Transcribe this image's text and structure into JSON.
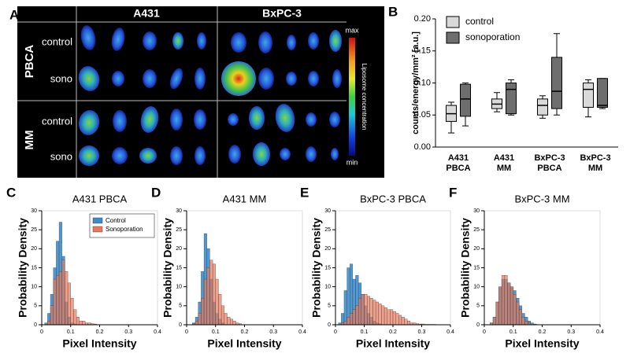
{
  "image_panel": {
    "panel_label": "A",
    "columns": [
      "A431",
      "BxPC-3"
    ],
    "groups": [
      {
        "name": "PBCA",
        "rows": [
          "control",
          "sono"
        ]
      },
      {
        "name": "MM",
        "rows": [
          "control",
          "sono"
        ]
      }
    ],
    "colorbar": {
      "max_label": "max",
      "min_label": "min",
      "title": "Liposome concentration"
    }
  },
  "chart_data": [
    {
      "type": "box",
      "panel_label": "B",
      "ylabel": "counts/energy/mm² [a.u.]",
      "categories": [
        [
          "A431",
          "PBCA"
        ],
        [
          "A431",
          "MM"
        ],
        [
          "BxPC-3",
          "PBCA"
        ],
        [
          "BxPC-3",
          "MM"
        ]
      ],
      "series": [
        {
          "name": "control",
          "color": "#d9d9d9",
          "values": [
            [
              0.022,
              0.04,
              0.052,
              0.065,
              0.07
            ],
            [
              0.055,
              0.06,
              0.067,
              0.075,
              0.085
            ],
            [
              0.045,
              0.05,
              0.065,
              0.075,
              0.08
            ],
            [
              0.047,
              0.062,
              0.09,
              0.1,
              0.105
            ]
          ]
        },
        {
          "name": "sonoporation",
          "color": "#6e6e6e",
          "values": [
            [
              0.033,
              0.048,
              0.075,
              0.098,
              0.1
            ],
            [
              0.05,
              0.052,
              0.09,
              0.1,
              0.105
            ],
            [
              0.05,
              0.06,
              0.087,
              0.14,
              0.177
            ],
            [
              0.06,
              0.062,
              0.065,
              0.107,
              0.107
            ]
          ]
        }
      ],
      "ylim": [
        0,
        0.2
      ],
      "yticks": [
        {
          "value": 0,
          "label": "0.00"
        },
        {
          "value": 0.05,
          "label": "0.05"
        },
        {
          "value": 0.1,
          "label": "0.10"
        },
        {
          "value": 0.15,
          "label": "0.15"
        },
        {
          "value": 0.2,
          "label": "0.20"
        }
      ],
      "legend": "top-left"
    },
    {
      "type": "histogram",
      "panel_label": "C",
      "title": "A431 PBCA",
      "xlabel": "Pixel Intensity",
      "ylabel": "Probability Density",
      "bins": [
        0,
        0.01,
        0.02,
        0.03,
        0.04,
        0.05,
        0.06,
        0.07,
        0.08,
        0.09,
        0.1,
        0.11,
        0.12,
        0.13,
        0.14,
        0.15,
        0.16,
        0.17,
        0.18,
        0.19,
        0.2,
        0.21,
        0.22,
        0.23,
        0.24,
        0.25,
        0.26,
        0.27,
        0.28,
        0.29,
        0.3,
        0.31,
        0.32,
        0.33,
        0.34,
        0.35,
        0.36,
        0.37,
        0.38,
        0.39,
        0.4
      ],
      "series": [
        {
          "name": "Control",
          "color": "#3c8dcc",
          "values": [
            0,
            0.5,
            3,
            8,
            15,
            22,
            27,
            18,
            6,
            2,
            0.5,
            0.2,
            0,
            0,
            0,
            0,
            0,
            0,
            0,
            0,
            0,
            0,
            0,
            0,
            0,
            0,
            0,
            0,
            0,
            0,
            0,
            0,
            0,
            0,
            0,
            0,
            0,
            0,
            0,
            0
          ]
        },
        {
          "name": "Sonoporation",
          "color": "#e8795a",
          "values": [
            0,
            0,
            1,
            5,
            12,
            13,
            14,
            17,
            14,
            11,
            7,
            4,
            2,
            1,
            1,
            0.5,
            0.5,
            0.3,
            0.2,
            0,
            0,
            0,
            0,
            0,
            0,
            0,
            0,
            0,
            0,
            0,
            0,
            0,
            0,
            0,
            0,
            0,
            0,
            0,
            0,
            0
          ]
        }
      ],
      "xlim": [
        0,
        0.4
      ],
      "xticks": [
        0,
        0.1,
        0.2,
        0.3,
        0.4
      ],
      "ylim": [
        0,
        30
      ],
      "yticks": [
        0,
        5,
        10,
        15,
        20,
        25,
        30
      ],
      "legend": "top-right"
    },
    {
      "type": "histogram",
      "panel_label": "D",
      "title": "A431 MM",
      "xlabel": "Pixel Intensity",
      "ylabel": "Probability Density",
      "bins": [
        0,
        0.01,
        0.02,
        0.03,
        0.04,
        0.05,
        0.06,
        0.07,
        0.08,
        0.09,
        0.1,
        0.11,
        0.12,
        0.13,
        0.14,
        0.15,
        0.16,
        0.17,
        0.18,
        0.19,
        0.2,
        0.21,
        0.22,
        0.23,
        0.24,
        0.25,
        0.26,
        0.27,
        0.28,
        0.29,
        0.3,
        0.31,
        0.32,
        0.33,
        0.34,
        0.35,
        0.36,
        0.37,
        0.38,
        0.39,
        0.4
      ],
      "series": [
        {
          "color": "#3c8dcc",
          "values": [
            0,
            0,
            0.5,
            2,
            6,
            14,
            24,
            20,
            12,
            6,
            3,
            1.5,
            0.5,
            0,
            0,
            0,
            0,
            0,
            0,
            0,
            0,
            0,
            0,
            0,
            0,
            0,
            0,
            0,
            0,
            0,
            0,
            0,
            0,
            0,
            0,
            0,
            0,
            0,
            0,
            0
          ]
        },
        {
          "color": "#e8795a",
          "values": [
            0,
            0,
            0.3,
            1,
            3,
            7,
            12,
            15,
            17,
            16,
            12,
            8,
            5,
            3,
            2,
            1.5,
            1,
            0.5,
            0.3,
            0,
            0,
            0,
            0,
            0,
            0,
            0,
            0,
            0,
            0,
            0,
            0,
            0,
            0,
            0,
            0,
            0,
            0,
            0,
            0,
            0
          ]
        }
      ],
      "xlim": [
        0,
        0.4
      ],
      "xticks": [
        0,
        0.1,
        0.2,
        0.3,
        0.4
      ],
      "ylim": [
        0,
        30
      ],
      "yticks": [
        0,
        5,
        10,
        15,
        20,
        25,
        30
      ]
    },
    {
      "type": "histogram",
      "panel_label": "E",
      "title": "BxPC-3 PBCA",
      "xlabel": "Pixel Intensity",
      "ylabel": "Probability Density",
      "bins": [
        0,
        0.01,
        0.02,
        0.03,
        0.04,
        0.05,
        0.06,
        0.07,
        0.08,
        0.09,
        0.1,
        0.11,
        0.12,
        0.13,
        0.14,
        0.15,
        0.16,
        0.17,
        0.18,
        0.19,
        0.2,
        0.21,
        0.22,
        0.23,
        0.24,
        0.25,
        0.26,
        0.27,
        0.28,
        0.29,
        0.3,
        0.31,
        0.32,
        0.33,
        0.34,
        0.35,
        0.36,
        0.37,
        0.38,
        0.39,
        0.4
      ],
      "series": [
        {
          "color": "#3c8dcc",
          "values": [
            0,
            0.5,
            3,
            9,
            15,
            16,
            12,
            13,
            11,
            8,
            5,
            3,
            2,
            1,
            0.5,
            0.3,
            0,
            0,
            0,
            0,
            0,
            0,
            0,
            0,
            0,
            0,
            0,
            0,
            0,
            0,
            0,
            0,
            0,
            0,
            0,
            0,
            0,
            0,
            0,
            0
          ]
        },
        {
          "color": "#e8795a",
          "values": [
            0,
            0,
            0.5,
            1,
            2,
            3,
            4,
            5,
            7,
            8,
            8,
            7.5,
            7,
            6.5,
            6,
            5.5,
            5,
            4.5,
            4,
            4,
            3.5,
            3,
            2.5,
            2,
            1.5,
            1,
            0.5,
            0.5,
            0.3,
            0.2,
            0.2,
            0.1,
            0.1,
            0.1,
            0.1,
            0,
            0,
            0,
            0,
            0
          ]
        }
      ],
      "xlim": [
        0,
        0.4
      ],
      "xticks": [
        0,
        0.1,
        0.2,
        0.3,
        0.4
      ],
      "ylim": [
        0,
        30
      ],
      "yticks": [
        0,
        5,
        10,
        15,
        20,
        25,
        30
      ]
    },
    {
      "type": "histogram",
      "panel_label": "F",
      "title": "BxPC-3 MM",
      "xlabel": "Pixel Intensity",
      "ylabel": "Probability Density",
      "bins": [
        0,
        0.01,
        0.02,
        0.03,
        0.04,
        0.05,
        0.06,
        0.07,
        0.08,
        0.09,
        0.1,
        0.11,
        0.12,
        0.13,
        0.14,
        0.15,
        0.16,
        0.17,
        0.18,
        0.19,
        0.2,
        0.21,
        0.22,
        0.23,
        0.24,
        0.25,
        0.26,
        0.27,
        0.28,
        0.29,
        0.3,
        0.31,
        0.32,
        0.33,
        0.34,
        0.35,
        0.36,
        0.37,
        0.38,
        0.39,
        0.4
      ],
      "series": [
        {
          "color": "#3c8dcc",
          "values": [
            0,
            0,
            0.5,
            2,
            6,
            10,
            12,
            12,
            11,
            10,
            9,
            7,
            5,
            3,
            2,
            1,
            0.5,
            0.2,
            0,
            0,
            0,
            0,
            0,
            0,
            0,
            0,
            0,
            0,
            0,
            0,
            0,
            0,
            0,
            0,
            0,
            0,
            0,
            0,
            0,
            0
          ]
        },
        {
          "color": "#e8795a",
          "values": [
            0,
            0,
            0.5,
            2,
            6,
            10,
            13,
            13,
            11,
            10,
            8,
            6,
            4,
            2,
            1,
            0.5,
            0,
            0,
            0,
            0,
            0,
            0,
            0,
            0,
            0,
            0,
            0,
            0,
            0,
            0,
            0,
            0,
            0,
            0,
            0,
            0,
            0,
            0,
            0,
            0
          ]
        }
      ],
      "xlim": [
        0,
        0.4
      ],
      "xticks": [
        0,
        0.1,
        0.2,
        0.3,
        0.4
      ],
      "ylim": [
        0,
        30
      ],
      "yticks": [
        0,
        5,
        10,
        15,
        20,
        25,
        30
      ]
    }
  ]
}
